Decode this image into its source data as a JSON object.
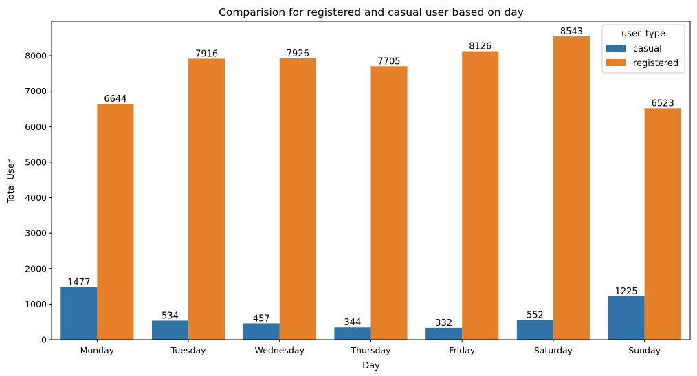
{
  "chart_data": {
    "type": "bar",
    "title": "Comparision for registered and casual user based on day",
    "xlabel": "Day",
    "ylabel": "Total User",
    "categories": [
      "Monday",
      "Tuesday",
      "Wednesday",
      "Thursday",
      "Friday",
      "Saturday",
      "Sunday"
    ],
    "series": [
      {
        "name": "casual",
        "color": "#2f73a9",
        "values": [
          1477,
          534,
          457,
          344,
          332,
          552,
          1225
        ]
      },
      {
        "name": "registered",
        "color": "#e5802a",
        "values": [
          6644,
          7916,
          7926,
          7705,
          8126,
          8543,
          6523
        ]
      }
    ],
    "ylim": [
      0,
      8970
    ],
    "yticks": [
      0,
      1000,
      2000,
      3000,
      4000,
      5000,
      6000,
      7000,
      8000
    ],
    "grid": false,
    "legend": {
      "title": "user_type",
      "placement": "top-right"
    }
  }
}
